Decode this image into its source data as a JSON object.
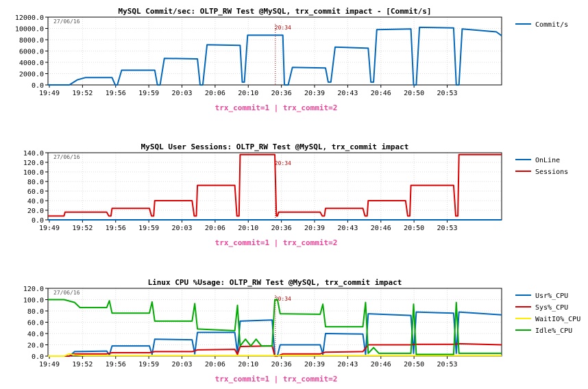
{
  "chart_data": [
    {
      "type": "line",
      "title": "MySQL Commit/sec: OLTP_RW Test @MySQL, trx_commit impact - [Commit/s]",
      "date_label": "27/06/16",
      "marker_label": "20:34",
      "annotation": "trx_commit=1 | trx_commit=2",
      "ylim": [
        0,
        12000
      ],
      "y_ticks": [
        "0.0",
        "2000.0",
        "4000.0",
        "6000.0",
        "8000.0",
        "10000.0",
        "12000.0"
      ],
      "x_ticks": [
        "19:49",
        "19:52",
        "19:56",
        "19:59",
        "20:03",
        "20:06",
        "20:10",
        "20:36",
        "20:39",
        "20:43",
        "20:46",
        "20:50",
        "20:53"
      ],
      "series": [
        {
          "name": "Commit/s",
          "color": "#0066bb",
          "points": [
            [
              0,
              0
            ],
            [
              4,
              0
            ],
            [
              5.5,
              900
            ],
            [
              7,
              1300
            ],
            [
              12,
              1300
            ],
            [
              12.6,
              0
            ],
            [
              13,
              0
            ],
            [
              13.8,
              2600
            ],
            [
              20,
              2600
            ],
            [
              20.5,
              0
            ],
            [
              21,
              0
            ],
            [
              21.8,
              4700
            ],
            [
              28,
              4600
            ],
            [
              28.5,
              0
            ],
            [
              29,
              0
            ],
            [
              29.8,
              7100
            ],
            [
              36,
              7000
            ],
            [
              36.4,
              500
            ],
            [
              36.8,
              500
            ],
            [
              37.4,
              8800
            ],
            [
              44,
              8800
            ],
            [
              44.3,
              0
            ],
            [
              45,
              0
            ],
            [
              45.8,
              3100
            ],
            [
              52,
              3000
            ],
            [
              52.5,
              500
            ],
            [
              53,
              500
            ],
            [
              53.8,
              6700
            ],
            [
              60,
              6500
            ],
            [
              60.5,
              500
            ],
            [
              61,
              500
            ],
            [
              61.6,
              9800
            ],
            [
              68,
              9900
            ],
            [
              68.5,
              0
            ],
            [
              69,
              0
            ],
            [
              69.6,
              10200
            ],
            [
              76,
              10100
            ],
            [
              76.5,
              0
            ],
            [
              77,
              0
            ],
            [
              77.6,
              9900
            ],
            [
              84,
              9400
            ],
            [
              85,
              8700
            ]
          ]
        }
      ]
    },
    {
      "type": "line",
      "title": "MySQL User Sessions: OLTP_RW Test @MySQL, trx_commit impact",
      "date_label": "27/06/16",
      "marker_label": "20:34",
      "annotation": "trx_commit=1 | trx_commit=2",
      "ylim": [
        0,
        140
      ],
      "y_ticks": [
        "0.0",
        "20.0",
        "40.0",
        "60.0",
        "80.0",
        "100.0",
        "120.0",
        "140.0"
      ],
      "x_ticks": [
        "19:49",
        "19:52",
        "19:56",
        "19:59",
        "20:03",
        "20:06",
        "20:10",
        "20:36",
        "20:39",
        "20:43",
        "20:46",
        "20:50",
        "20:53"
      ],
      "series": [
        {
          "name": "OnLine",
          "color": "#0066bb",
          "points": [
            [
              0,
              0
            ],
            [
              85,
              0
            ]
          ]
        },
        {
          "name": "Sessions",
          "color": "#dd0000",
          "points": [
            [
              0,
              8
            ],
            [
              3,
              8
            ],
            [
              3.2,
              16
            ],
            [
              11,
              16
            ],
            [
              11.4,
              8
            ],
            [
              11.8,
              8
            ],
            [
              12,
              24
            ],
            [
              19,
              24
            ],
            [
              19.4,
              8
            ],
            [
              19.8,
              8
            ],
            [
              20,
              40
            ],
            [
              27,
              40
            ],
            [
              27.4,
              8
            ],
            [
              27.8,
              8
            ],
            [
              28,
              72
            ],
            [
              35,
              72
            ],
            [
              35.4,
              8
            ],
            [
              35.8,
              8
            ],
            [
              36,
              136
            ],
            [
              42.5,
              136
            ],
            [
              42.8,
              8
            ],
            [
              43,
              8
            ],
            [
              43.2,
              16
            ],
            [
              51,
              16
            ],
            [
              51.4,
              8
            ],
            [
              51.8,
              8
            ],
            [
              52,
              24
            ],
            [
              59,
              24
            ],
            [
              59.4,
              8
            ],
            [
              59.8,
              8
            ],
            [
              60,
              40
            ],
            [
              67,
              40
            ],
            [
              67.4,
              8
            ],
            [
              67.8,
              8
            ],
            [
              68,
              72
            ],
            [
              76,
              72
            ],
            [
              76.4,
              8
            ],
            [
              76.8,
              8
            ],
            [
              77,
              136
            ],
            [
              85,
              136
            ]
          ]
        }
      ]
    },
    {
      "type": "line",
      "title": "Linux CPU %Usage: OLTP_RW Test @MySQL, trx_commit impact",
      "date_label": "27/06/16",
      "marker_label": "20:34",
      "annotation": "trx_commit=1 | trx_commit=2",
      "ylim": [
        0,
        120
      ],
      "y_ticks": [
        "0.0",
        "20.0",
        "40.0",
        "60.0",
        "80.0",
        "100.0",
        "120.0"
      ],
      "x_ticks": [
        "19:49",
        "19:52",
        "19:56",
        "19:59",
        "20:03",
        "20:06",
        "20:10",
        "20:36",
        "20:39",
        "20:43",
        "20:46",
        "20:50",
        "20:53"
      ],
      "series": [
        {
          "name": "Usr%_CPU",
          "color": "#0066bb",
          "points": [
            [
              0,
              0
            ],
            [
              4,
              0
            ],
            [
              5,
              8
            ],
            [
              11,
              9
            ],
            [
              11.5,
              2
            ],
            [
              12,
              18
            ],
            [
              19,
              18
            ],
            [
              19.5,
              3
            ],
            [
              20,
              30
            ],
            [
              27,
              29
            ],
            [
              27.5,
              4
            ],
            [
              28,
              42
            ],
            [
              35,
              42
            ],
            [
              35.5,
              5
            ],
            [
              36,
              62
            ],
            [
              42,
              64
            ],
            [
              42.5,
              1
            ],
            [
              43,
              1
            ],
            [
              43.5,
              20
            ],
            [
              51,
              20
            ],
            [
              51.5,
              3
            ],
            [
              52,
              40
            ],
            [
              59,
              39
            ],
            [
              59.5,
              3
            ],
            [
              60,
              75
            ],
            [
              68,
              72
            ],
            [
              68.5,
              5
            ],
            [
              69,
              78
            ],
            [
              76,
              76
            ],
            [
              76.5,
              5
            ],
            [
              77,
              78
            ],
            [
              85,
              73
            ]
          ]
        },
        {
          "name": "Sys%_CPU",
          "color": "#dd0000",
          "points": [
            [
              0,
              0
            ],
            [
              4,
              0
            ],
            [
              5,
              4
            ],
            [
              11,
              4
            ],
            [
              12,
              6
            ],
            [
              19,
              6
            ],
            [
              20,
              8
            ],
            [
              27,
              8
            ],
            [
              28,
              11
            ],
            [
              35,
              12
            ],
            [
              35.5,
              3
            ],
            [
              36,
              17
            ],
            [
              42,
              18
            ],
            [
              42.5,
              0
            ],
            [
              43,
              0
            ],
            [
              44,
              4
            ],
            [
              51,
              4
            ],
            [
              52,
              7
            ],
            [
              59,
              8
            ],
            [
              60,
              20
            ],
            [
              68,
              20
            ],
            [
              69,
              21
            ],
            [
              76,
              21
            ],
            [
              77,
              22
            ],
            [
              85,
              20
            ]
          ]
        },
        {
          "name": "WaitIO%_CPU",
          "color": "#ffee00",
          "points": [
            [
              0,
              0
            ],
            [
              3,
              0
            ],
            [
              4,
              4
            ],
            [
              5,
              2
            ],
            [
              7,
              1
            ],
            [
              85,
              1
            ]
          ]
        },
        {
          "name": "Idle%_CPU",
          "color": "#00aa00",
          "points": [
            [
              0,
              100
            ],
            [
              3,
              100
            ],
            [
              5,
              95
            ],
            [
              6,
              86
            ],
            [
              11,
              86
            ],
            [
              11.5,
              98
            ],
            [
              12,
              76
            ],
            [
              19,
              76
            ],
            [
              19.5,
              96
            ],
            [
              20,
              62
            ],
            [
              27,
              62
            ],
            [
              27.5,
              93
            ],
            [
              28,
              48
            ],
            [
              35,
              45
            ],
            [
              35.5,
              90
            ],
            [
              36,
              18
            ],
            [
              37,
              30
            ],
            [
              38,
              18
            ],
            [
              39,
              30
            ],
            [
              40,
              18
            ],
            [
              42,
              18
            ],
            [
              42.5,
              100
            ],
            [
              43,
              100
            ],
            [
              43.5,
              75
            ],
            [
              51,
              74
            ],
            [
              51.5,
              92
            ],
            [
              52,
              52
            ],
            [
              59,
              52
            ],
            [
              59.5,
              95
            ],
            [
              60,
              5
            ],
            [
              61,
              15
            ],
            [
              62,
              5
            ],
            [
              68,
              5
            ],
            [
              68.5,
              92
            ],
            [
              69,
              3
            ],
            [
              76,
              3
            ],
            [
              76.5,
              95
            ],
            [
              77,
              5
            ],
            [
              85,
              5
            ]
          ]
        }
      ]
    }
  ]
}
